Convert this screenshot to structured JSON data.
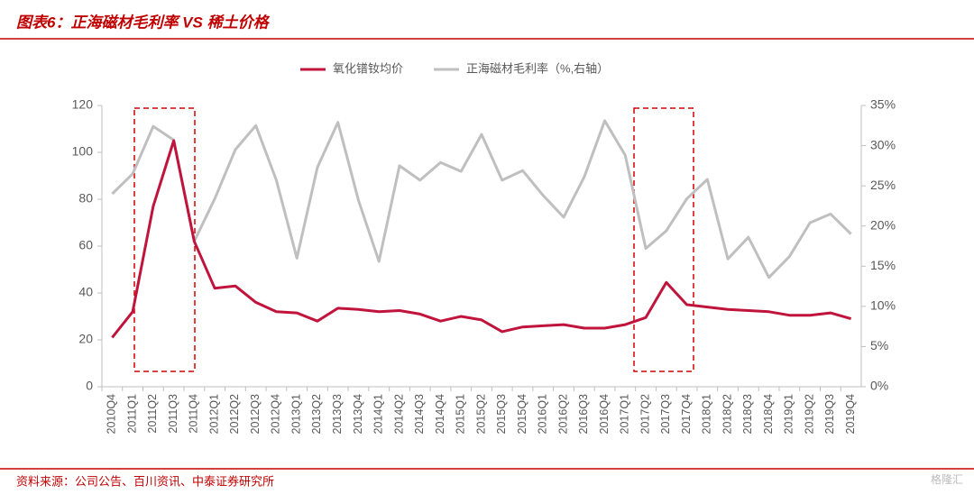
{
  "chart_data": {
    "type": "line",
    "title": "图表6：正海磁材毛利率 VS 稀土价格",
    "source": "资料来源：公司公告、百川资讯、中泰证券研究所",
    "watermark": "格隆汇",
    "categories": [
      "2010Q4",
      "2011Q1",
      "2011Q2",
      "2011Q3",
      "2011Q4",
      "2012Q1",
      "2012Q2",
      "2012Q3",
      "2012Q4",
      "2013Q1",
      "2013Q2",
      "2013Q3",
      "2013Q4",
      "2014Q1",
      "2014Q2",
      "2014Q3",
      "2014Q4",
      "2015Q1",
      "2015Q2",
      "2015Q3",
      "2015Q4",
      "2016Q1",
      "2016Q2",
      "2016Q3",
      "2016Q4",
      "2017Q1",
      "2017Q2",
      "2017Q3",
      "2017Q4",
      "2018Q1",
      "2018Q2",
      "2018Q3",
      "2018Q4",
      "2019Q1",
      "2019Q2",
      "2019Q3",
      "2019Q4"
    ],
    "series": [
      {
        "name": "氧化镨钕均价",
        "color": "#c0143c",
        "values": [
          21,
          32,
          77,
          105,
          62,
          42,
          43,
          36,
          32,
          31.5,
          28,
          33.5,
          33,
          32,
          32.5,
          31,
          28,
          30,
          28.5,
          23.5,
          25.5,
          26,
          26.5,
          25,
          25,
          26.5,
          29.5,
          44.5,
          35,
          34,
          33,
          32.5,
          32,
          30.5,
          30.5,
          31.5,
          29
        ]
      },
      {
        "name": "正海磁材毛利率（%,右轴）",
        "color": "#bfbfbf",
        "axis": "y2",
        "values": [
          24.0,
          26.5,
          32.4,
          30.7,
          18.1,
          23.4,
          29.5,
          32.5,
          25.7,
          16.0,
          27.3,
          32.9,
          23.2,
          15.6,
          27.5,
          25.7,
          27.9,
          26.8,
          31.4,
          25.7,
          26.9,
          23.8,
          21.1,
          26.1,
          33.1,
          28.8,
          17.2,
          19.4,
          23.4,
          25.8,
          15.9,
          18.6,
          13.6,
          16.2,
          20.4,
          21.5,
          19.0
        ]
      }
    ],
    "ylim": [
      0,
      120
    ],
    "yticks": [
      0,
      20,
      40,
      60,
      80,
      100,
      120
    ],
    "y2lim": [
      0,
      35
    ],
    "y2ticks": [
      {
        "value": 0,
        "label": "0%"
      },
      {
        "value": 5,
        "label": "5%"
      },
      {
        "value": 10,
        "label": "10%"
      },
      {
        "value": 15,
        "label": "15%"
      },
      {
        "value": 20,
        "label": "20%"
      },
      {
        "value": 25,
        "label": "25%"
      },
      {
        "value": 30,
        "label": "30%"
      },
      {
        "value": 35,
        "label": "35%"
      }
    ],
    "legend": "top"
  }
}
